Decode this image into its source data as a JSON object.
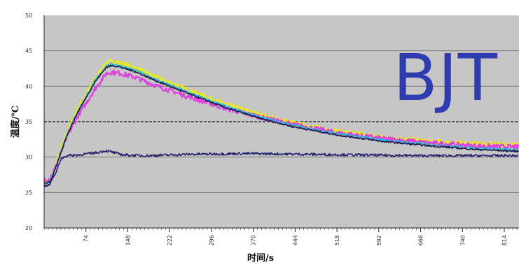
{
  "chart_data": {
    "type": "line",
    "xlabel": "时间/s",
    "ylabel": "温度/℃",
    "xlim": [
      0,
      420
    ],
    "ylim": [
      20,
      50
    ],
    "y_ticks": [
      "20",
      "25",
      "30",
      "35",
      "40",
      "45",
      "50"
    ],
    "x_ticks": [
      {
        "value": 37,
        "label": "74"
      },
      {
        "value": 74,
        "label": "148"
      },
      {
        "value": 111,
        "label": "222"
      },
      {
        "value": 148,
        "label": "296"
      },
      {
        "value": 185,
        "label": "370"
      },
      {
        "value": 222,
        "label": "444"
      },
      {
        "value": 259,
        "label": "518"
      },
      {
        "value": 296,
        "label": "592"
      },
      {
        "value": 333,
        "label": "666"
      },
      {
        "value": 370,
        "label": "740"
      },
      {
        "value": 407,
        "label": "814"
      }
    ],
    "reference_line_y": 35,
    "grid": true,
    "background": "#c6c6c6",
    "series": [
      {
        "color": "#e8e820",
        "noise": 0.35,
        "x": [
          0,
          5,
          10,
          20,
          30,
          45,
          55,
          60,
          65,
          80,
          100,
          130,
          160,
          190,
          220,
          260,
          300,
          340,
          380,
          420
        ],
        "y": [
          26.5,
          26.6,
          28.8,
          33.5,
          37.0,
          41.0,
          43.3,
          43.5,
          43.4,
          42.6,
          41.2,
          39.3,
          37.5,
          36.0,
          34.8,
          33.6,
          32.8,
          32.2,
          31.9,
          31.7
        ]
      },
      {
        "color": "#e040e0",
        "noise": 0.35,
        "x": [
          0,
          5,
          10,
          20,
          30,
          45,
          55,
          60,
          65,
          80,
          100,
          130,
          160,
          190,
          220,
          260,
          300,
          340,
          380,
          420
        ],
        "y": [
          26.8,
          26.9,
          28.5,
          32.8,
          35.8,
          39.6,
          41.8,
          42.0,
          41.9,
          41.3,
          40.0,
          38.4,
          36.9,
          35.7,
          34.6,
          33.4,
          32.6,
          32.0,
          31.6,
          31.4
        ]
      },
      {
        "color": "#2ab8d8",
        "noise": 0.15,
        "x": [
          0,
          5,
          10,
          20,
          30,
          45,
          55,
          60,
          65,
          80,
          100,
          130,
          160,
          190,
          220,
          260,
          300,
          340,
          380,
          420
        ],
        "y": [
          26.2,
          26.4,
          28.6,
          33.2,
          36.6,
          40.8,
          42.9,
          43.1,
          43.0,
          42.3,
          40.9,
          39.0,
          37.2,
          35.7,
          34.5,
          33.3,
          32.4,
          31.8,
          31.3,
          31.0
        ]
      },
      {
        "color": "#1a1a50",
        "noise": 0.12,
        "x": [
          0,
          5,
          10,
          20,
          30,
          45,
          55,
          60,
          65,
          80,
          100,
          130,
          160,
          190,
          220,
          260,
          300,
          340,
          380,
          420
        ],
        "y": [
          25.9,
          26.1,
          28.4,
          33.0,
          36.4,
          40.6,
          42.7,
          42.9,
          42.8,
          42.1,
          40.7,
          38.8,
          37.0,
          35.5,
          34.3,
          33.1,
          32.2,
          31.6,
          31.1,
          30.8
        ]
      },
      {
        "color": "#24246e",
        "noise": 0.18,
        "x": [
          0,
          5,
          10,
          15,
          20,
          30,
          45,
          55,
          60,
          70,
          90,
          130,
          180,
          230,
          280,
          330,
          380,
          420
        ],
        "y": [
          26.4,
          26.5,
          27.6,
          29.8,
          30.2,
          30.3,
          30.6,
          30.9,
          30.7,
          30.3,
          30.2,
          30.4,
          30.5,
          30.4,
          30.3,
          30.2,
          30.2,
          30.2
        ]
      }
    ]
  },
  "overlay_label": "BJT"
}
